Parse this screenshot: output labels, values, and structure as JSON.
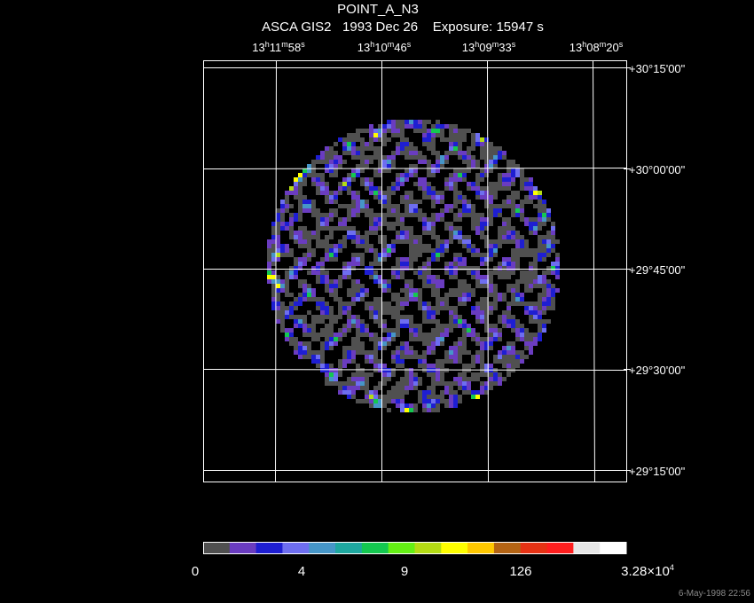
{
  "header": {
    "title": "POINT_A_N3",
    "subtitle": "ASCA GIS2   1993 Dec 26    Exposure: 15947 s"
  },
  "ra_labels": [
    [
      "13",
      "h",
      "11",
      "m",
      "58",
      "s"
    ],
    [
      "13",
      "h",
      "10",
      "m",
      "46",
      "s"
    ],
    [
      "13",
      "h",
      "09",
      "m",
      "33",
      "s"
    ],
    [
      "13",
      "h",
      "08",
      "m",
      "20",
      "s"
    ]
  ],
  "dec_labels": [
    "+30°15'00\"",
    "+30°00'00\"",
    "+29°45'00\"",
    "+29°30'00\"",
    "+29°15'00\""
  ],
  "colorbar": {
    "colors": [
      "#505050",
      "#6a3cc0",
      "#1e1ed2",
      "#6e6ef0",
      "#4696c8",
      "#1ea8a0",
      "#14c850",
      "#64f014",
      "#b4dc14",
      "#ffff00",
      "#ffc800",
      "#b46414",
      "#e63214",
      "#ff1e1e",
      "#e6e6e6",
      "#ffffff"
    ],
    "labels": [
      "0",
      "4",
      "9",
      "126",
      [
        "3.28×10",
        "4"
      ]
    ]
  },
  "timestamp": "6-May-1998 22:56"
}
